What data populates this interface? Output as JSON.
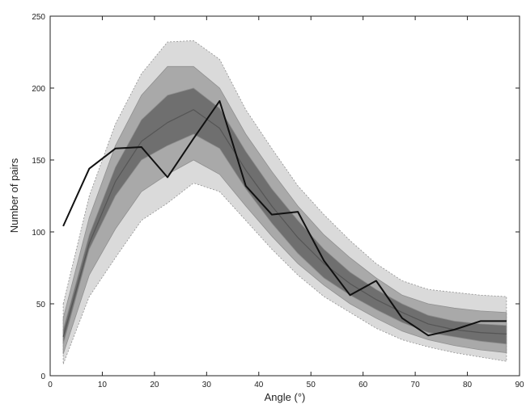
{
  "chart_data": {
    "type": "area",
    "title": "",
    "xlabel": "Angle (°)",
    "ylabel": "Number of pairs",
    "xlim": [
      0,
      90
    ],
    "ylim": [
      0,
      250
    ],
    "xticks": [
      0,
      10,
      20,
      30,
      40,
      50,
      60,
      70,
      80,
      90
    ],
    "yticks": [
      0,
      50,
      100,
      150,
      200,
      250
    ],
    "grid": false,
    "colors": {
      "band_outer": "#dadada",
      "band_middle": "#a9a9a9",
      "band_inner": "#6f6f6f",
      "band_edge": "#909090",
      "observed_line": "#111111",
      "mean_line": "#555555"
    },
    "x": [
      2.5,
      7.5,
      12.5,
      17.5,
      22.5,
      27.5,
      32.5,
      37.5,
      42.5,
      47.5,
      52.5,
      57.5,
      62.5,
      67.5,
      72.5,
      77.5,
      82.5,
      87.5
    ],
    "bands": [
      {
        "lower": [
          8,
          55,
          82,
          108,
          120,
          134,
          128,
          108,
          88,
          70,
          55,
          44,
          33,
          25,
          20,
          16,
          13,
          10
        ],
        "upper": [
          50,
          125,
          175,
          210,
          232,
          233,
          220,
          185,
          158,
          132,
          112,
          94,
          78,
          66,
          60,
          58,
          56,
          55
        ]
      },
      {
        "lower": [
          15,
          70,
          102,
          128,
          140,
          150,
          140,
          118,
          97,
          78,
          63,
          50,
          40,
          31,
          25,
          21,
          18,
          16
        ],
        "upper": [
          40,
          110,
          160,
          195,
          215,
          215,
          200,
          168,
          142,
          118,
          98,
          82,
          68,
          56,
          50,
          47,
          45,
          44
        ]
      },
      {
        "lower": [
          22,
          88,
          125,
          150,
          160,
          168,
          158,
          130,
          106,
          85,
          68,
          56,
          46,
          37,
          30,
          27,
          24,
          22
        ],
        "upper": [
          32,
          98,
          145,
          178,
          195,
          200,
          186,
          156,
          130,
          108,
          88,
          72,
          60,
          50,
          42,
          38,
          36,
          35
        ]
      }
    ],
    "series": [
      {
        "values": [
          27,
          92,
          135,
          163,
          176,
          185,
          172,
          143,
          118,
          96,
          78,
          64,
          53,
          44,
          36,
          32,
          30,
          29
        ]
      },
      {
        "values": [
          104,
          144,
          158,
          159,
          138,
          165,
          191,
          132,
          112,
          114,
          80,
          56,
          66,
          40,
          28,
          32,
          38,
          38
        ]
      }
    ]
  }
}
